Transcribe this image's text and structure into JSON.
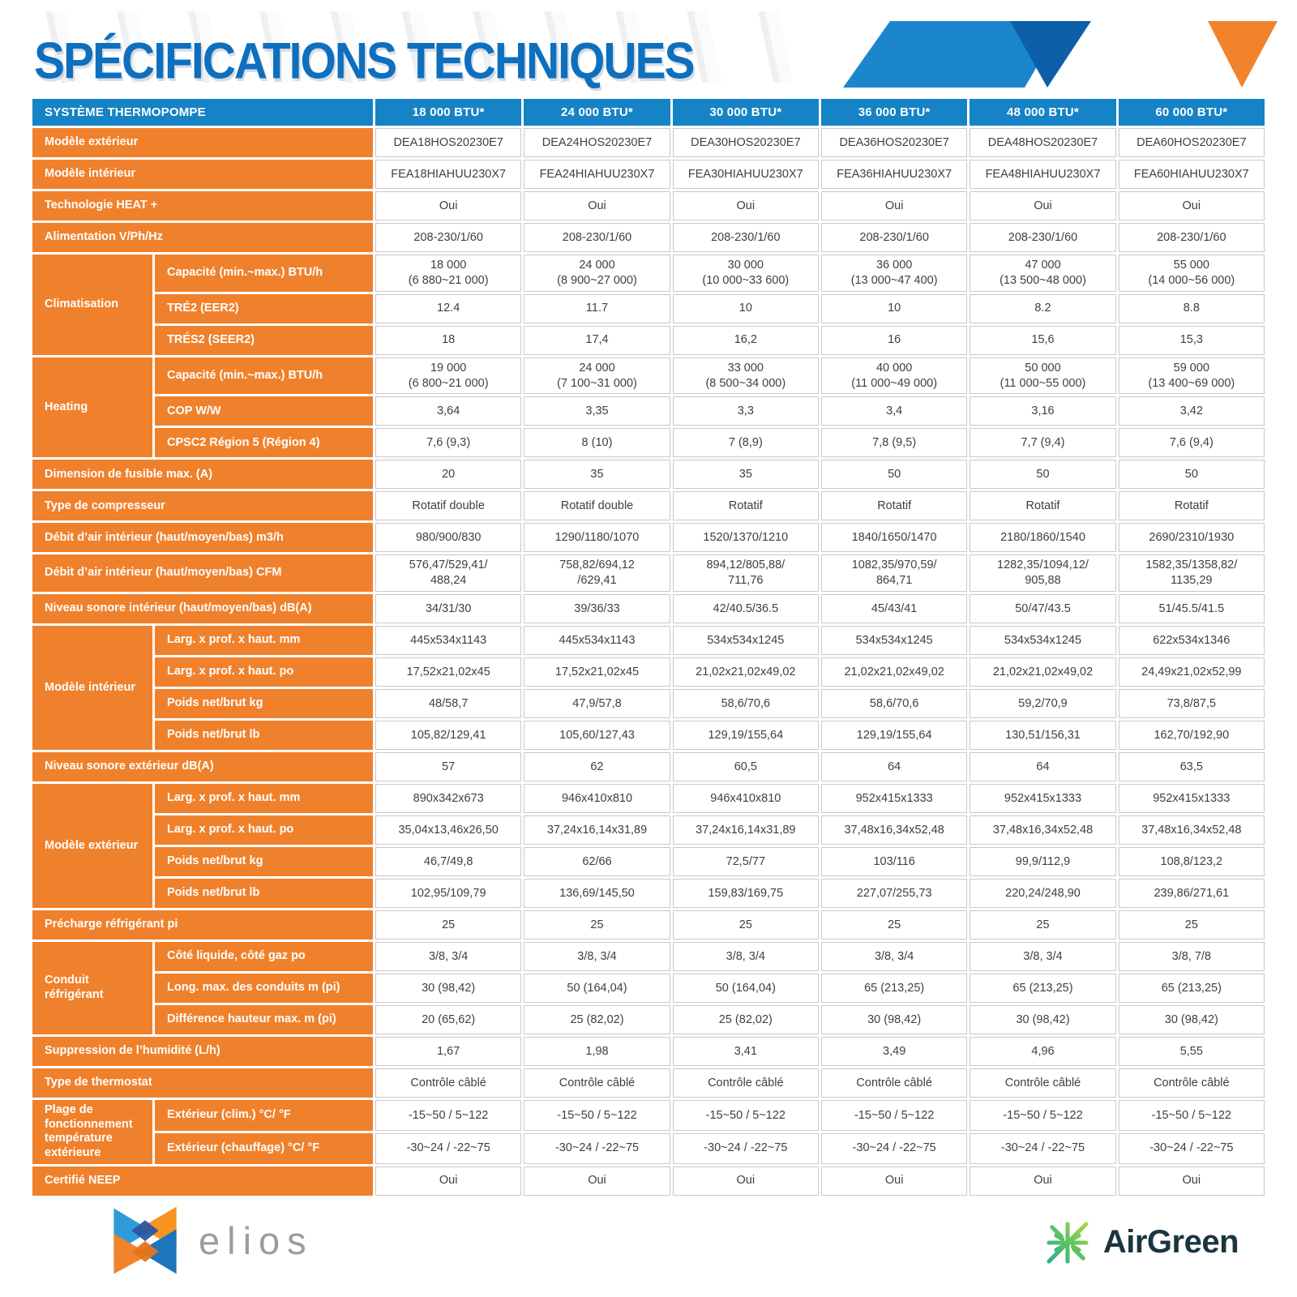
{
  "title": "SPÉCIFICATIONS TECHNIQUES",
  "colors": {
    "title_blue": "#0D6FBE",
    "header_blue": "#1583C6",
    "label_orange": "#F0812C",
    "accent_dark_blue": "#0E5FA9",
    "accent_orange": "#F0832C",
    "data_text": "#3F3F3F"
  },
  "table": {
    "header": {
      "label": "SYSTÈME THERMOPOMPE",
      "columns": [
        "18 000 BTU*",
        "24 000 BTU*",
        "30 000 BTU*",
        "36 000 BTU*",
        "48 000 BTU*",
        "60 000 BTU*"
      ]
    },
    "rows": [
      {
        "label": "Modèle extérieur",
        "values": [
          "DEA18HOS20230E7",
          "DEA24HOS20230E7",
          "DEA30HOS20230E7",
          "DEA36HOS20230E7",
          "DEA48HOS20230E7",
          "DEA60HOS20230E7"
        ]
      },
      {
        "label": "Modèle intérieur",
        "values": [
          "FEA18HIAHUU230X7",
          "FEA24HIAHUU230X7",
          "FEA30HIAHUU230X7",
          "FEA36HIAHUU230X7",
          "FEA48HIAHUU230X7",
          "FEA60HIAHUU230X7"
        ]
      },
      {
        "label": "Technologie HEAT +",
        "values": [
          "Oui",
          "Oui",
          "Oui",
          "Oui",
          "Oui",
          "Oui"
        ]
      },
      {
        "label": "Alimentation V/Ph/Hz",
        "values": [
          "208-230/1/60",
          "208-230/1/60",
          "208-230/1/60",
          "208-230/1/60",
          "208-230/1/60",
          "208-230/1/60"
        ]
      },
      {
        "group": "Climatisation",
        "sub": [
          {
            "label": "Capacité (min.~max.) BTU/h",
            "values": [
              "18 000\n(6 880~21 000)",
              "24 000\n(8 900~27 000)",
              "30 000\n(10 000~33 600)",
              "36 000\n(13 000~47 400)",
              "47 000\n(13 500~48 000)",
              "55 000\n(14 000~56 000)"
            ]
          },
          {
            "label": "TRÉ2 (EER2)",
            "values": [
              "12.4",
              "11.7",
              "10",
              "10",
              "8.2",
              "8.8"
            ]
          },
          {
            "label": "TRÉS2 (SEER2)",
            "values": [
              "18",
              "17,4",
              "16,2",
              "16",
              "15,6",
              "15,3"
            ]
          }
        ]
      },
      {
        "group": "Heating",
        "sub": [
          {
            "label": "Capacité (min.~max.) BTU/h",
            "values": [
              "19 000\n(6 800~21 000)",
              "24 000\n(7 100~31 000)",
              "33 000\n(8 500~34 000)",
              "40 000\n(11 000~49 000)",
              "50 000\n(11 000~55 000)",
              "59 000\n(13 400~69 000)"
            ]
          },
          {
            "label": "COP W/W",
            "values": [
              "3,64",
              "3,35",
              "3,3",
              "3,4",
              "3,16",
              "3,42"
            ]
          },
          {
            "label": "CPSC2 Région 5 (Région 4)",
            "values": [
              "7,6 (9,3)",
              "8 (10)",
              "7 (8,9)",
              "7,8 (9,5)",
              "7,7 (9,4)",
              "7,6 (9,4)"
            ]
          }
        ]
      },
      {
        "label": "Dimension de fusible max. (A)",
        "values": [
          "20",
          "35",
          "35",
          "50",
          "50",
          "50"
        ]
      },
      {
        "label": "Type de compresseur",
        "values": [
          "Rotatif double",
          "Rotatif double",
          "Rotatif",
          "Rotatif",
          "Rotatif",
          "Rotatif"
        ]
      },
      {
        "label": "Débit d’air intérieur (haut/moyen/bas) m3/h",
        "values": [
          "980/900/830",
          "1290/1180/1070",
          "1520/1370/1210",
          "1840/1650/1470",
          "2180/1860/1540",
          "2690/2310/1930"
        ]
      },
      {
        "label": "Débit d’air intérieur (haut/moyen/bas) CFM",
        "values": [
          "576,47/529,41/\n488,24",
          "758,82/694,12\n/629,41",
          "894,12/805,88/\n711,76",
          "1082,35/970,59/\n864,71",
          "1282,35/1094,12/\n905,88",
          "1582,35/1358,82/\n1135,29"
        ]
      },
      {
        "label": "Niveau sonore intérieur (haut/moyen/bas) dB(A)",
        "values": [
          "34/31/30",
          "39/36/33",
          "42/40.5/36.5",
          "45/43/41",
          "50/47/43.5",
          "51/45.5/41.5"
        ]
      },
      {
        "group": "Modèle intérieur",
        "sub": [
          {
            "label": "Larg. x prof. x haut. mm",
            "values": [
              "445x534x1143",
              "445x534x1143",
              "534x534x1245",
              "534x534x1245",
              "534x534x1245",
              "622x534x1346"
            ]
          },
          {
            "label": "Larg. x prof. x haut. po",
            "values": [
              "17,52x21,02x45",
              "17,52x21,02x45",
              "21,02x21,02x49,02",
              "21,02x21,02x49,02",
              "21,02x21,02x49,02",
              "24,49x21,02x52,99"
            ]
          },
          {
            "label": "Poids net/brut kg",
            "values": [
              "48/58,7",
              "47,9/57,8",
              "58,6/70,6",
              "58,6/70,6",
              "59,2/70,9",
              "73,8/87,5"
            ]
          },
          {
            "label": "Poids net/brut lb",
            "values": [
              "105,82/129,41",
              "105,60/127,43",
              "129,19/155,64",
              "129,19/155,64",
              "130,51/156,31",
              "162,70/192,90"
            ]
          }
        ]
      },
      {
        "label": "Niveau sonore extérieur dB(A)",
        "values": [
          "57",
          "62",
          "60,5",
          "64",
          "64",
          "63,5"
        ]
      },
      {
        "group": "Modèle extérieur",
        "sub": [
          {
            "label": "Larg. x prof. x haut. mm",
            "values": [
              "890x342x673",
              "946x410x810",
              "946x410x810",
              "952x415x1333",
              "952x415x1333",
              "952x415x1333"
            ]
          },
          {
            "label": "Larg. x prof. x haut. po",
            "values": [
              "35,04x13,46x26,50",
              "37,24x16,14x31,89",
              "37,24x16,14x31,89",
              "37,48x16,34x52,48",
              "37,48x16,34x52,48",
              "37,48x16,34x52,48"
            ]
          },
          {
            "label": "Poids net/brut kg",
            "values": [
              "46,7/49,8",
              "62/66",
              "72,5/77",
              "103/116",
              "99,9/112,9",
              "108,8/123,2"
            ]
          },
          {
            "label": "Poids net/brut lb",
            "values": [
              "102,95/109,79",
              "136,69/145,50",
              "159,83/169,75",
              "227,07/255,73",
              "220,24/248,90",
              "239,86/271,61"
            ]
          }
        ]
      },
      {
        "label": "Précharge réfrigérant pi",
        "values": [
          "25",
          "25",
          "25",
          "25",
          "25",
          "25"
        ]
      },
      {
        "group": "Conduit réfrigérant",
        "sub": [
          {
            "label": "Côté liquide, côté gaz po",
            "values": [
              "3/8, 3/4",
              "3/8, 3/4",
              "3/8, 3/4",
              "3/8, 3/4",
              "3/8, 3/4",
              "3/8, 7/8"
            ]
          },
          {
            "label": "Long. max. des conduits m (pi)",
            "values": [
              "30 (98,42)",
              "50 (164,04)",
              "50 (164,04)",
              "65 (213,25)",
              "65 (213,25)",
              "65 (213,25)"
            ]
          },
          {
            "label": "Différence hauteur max. m (pi)",
            "values": [
              "20 (65,62)",
              "25 (82,02)",
              "25 (82,02)",
              "30 (98,42)",
              "30 (98,42)",
              "30 (98,42)"
            ]
          }
        ]
      },
      {
        "label": "Suppression de l’humidité (L/h)",
        "values": [
          "1,67",
          "1,98",
          "3,41",
          "3,49",
          "4,96",
          "5,55"
        ]
      },
      {
        "label": "Type de thermostat",
        "values": [
          "Contrôle câblé",
          "Contrôle câblé",
          "Contrôle câblé",
          "Contrôle câblé",
          "Contrôle câblé",
          "Contrôle câblé"
        ]
      },
      {
        "group": "Plage de fonctionnement température extérieure",
        "sub": [
          {
            "label": "Extérieur (clim.) °C/ °F",
            "values": [
              "-15~50 / 5~122",
              "-15~50 / 5~122",
              "-15~50 / 5~122",
              "-15~50 / 5~122",
              "-15~50 / 5~122",
              "-15~50 / 5~122"
            ]
          },
          {
            "label": "Extérieur (chauffage) °C/ °F",
            "values": [
              "-30~24 / -22~75",
              "-30~24 / -22~75",
              "-30~24 / -22~75",
              "-30~24 / -22~75",
              "-30~24 / -22~75",
              "-30~24 / -22~75"
            ]
          }
        ]
      },
      {
        "label": "Certifié NEEP",
        "values": [
          "Oui",
          "Oui",
          "Oui",
          "Oui",
          "Oui",
          "Oui"
        ]
      }
    ]
  },
  "footer": {
    "elios": "elios",
    "airgreen": "AirGreen"
  }
}
